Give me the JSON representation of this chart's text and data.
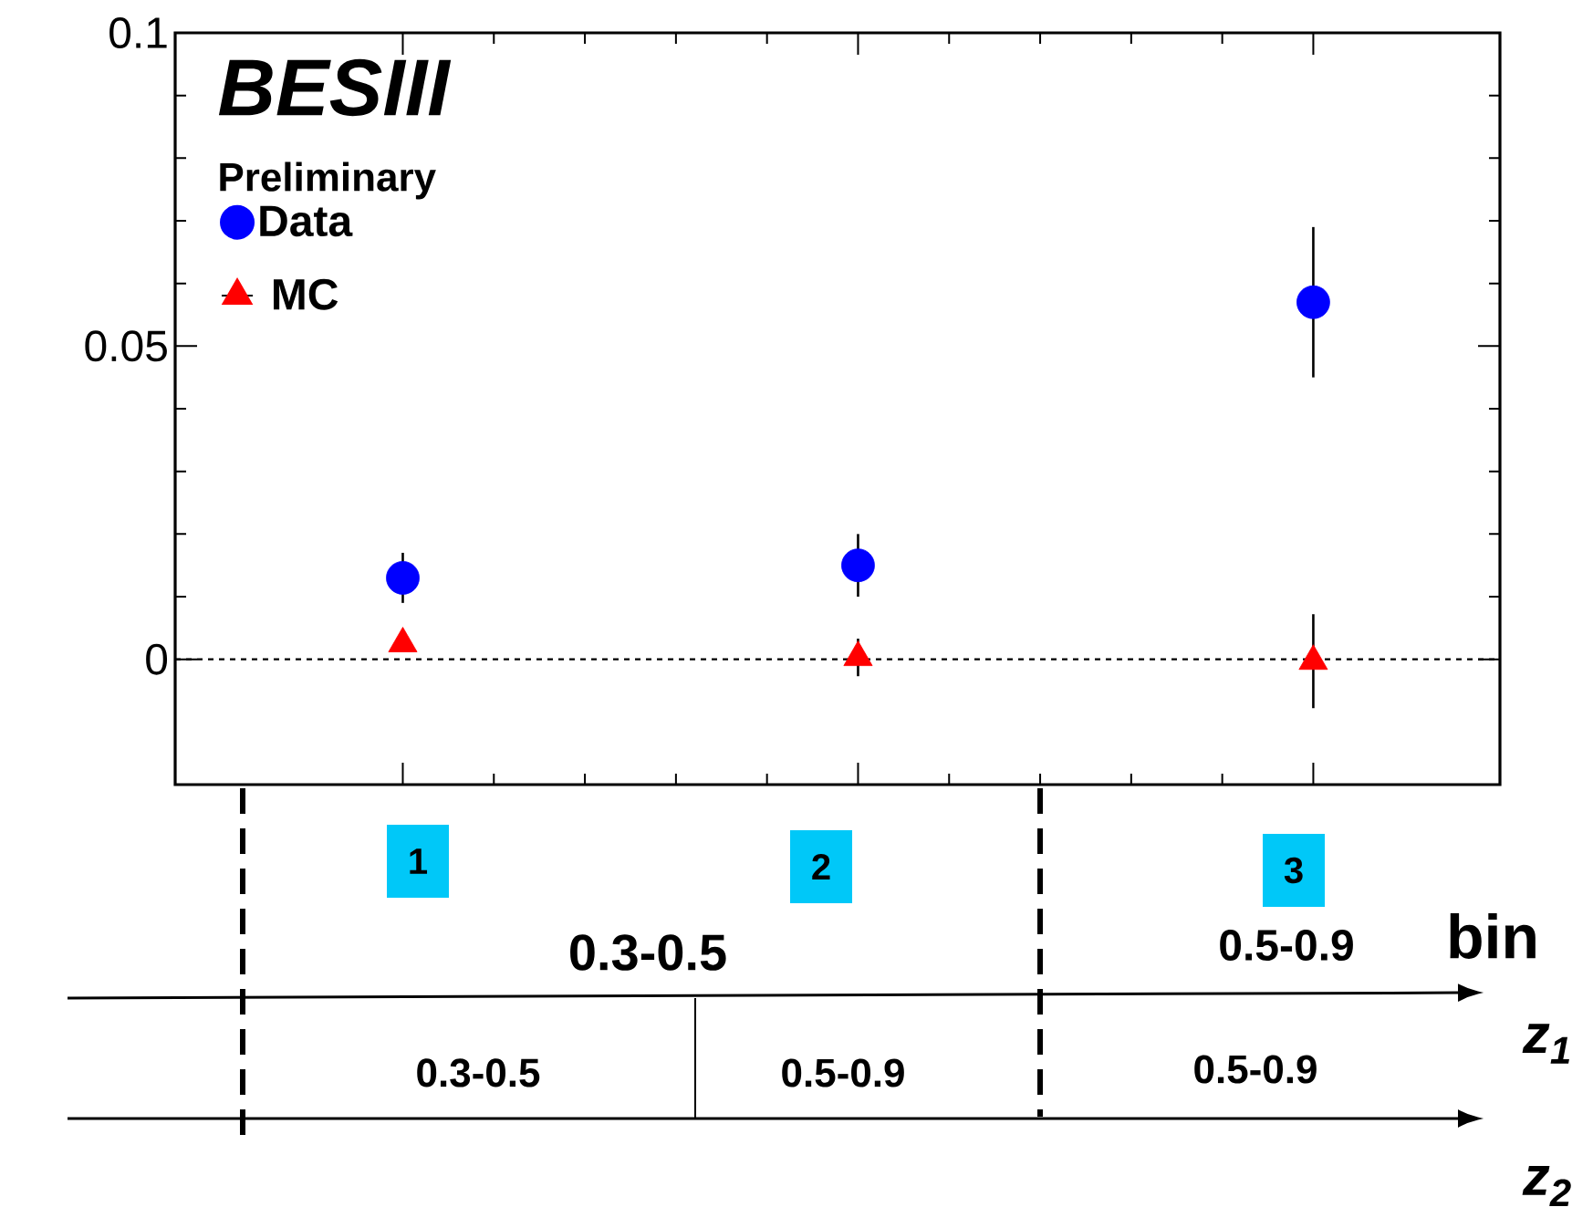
{
  "chart_data": {
    "type": "scatter",
    "categories": [
      "1",
      "2",
      "3"
    ],
    "series": [
      {
        "name": "Data",
        "color": "#0000ff",
        "marker": "circle",
        "values": [
          0.013,
          0.015,
          0.057
        ],
        "errors": [
          0.004,
          0.005,
          0.012
        ]
      },
      {
        "name": "MC",
        "color": "#ff0000",
        "marker": "triangle",
        "values": [
          0.0025,
          0.0003,
          -0.0003
        ],
        "errors": [
          null,
          0.003,
          0.0075
        ]
      }
    ],
    "ylim": [
      -0.02,
      0.1
    ],
    "yticks": [
      0,
      0.05,
      0.1
    ],
    "tick_labels": "y",
    "legend": "top left",
    "grid": false,
    "ref_lines": [
      {
        "axis": "y",
        "value": 0,
        "line_style": "dashed",
        "color": "#000000"
      }
    ],
    "annotations": [
      "BESIII",
      "Preliminary",
      "1",
      "2",
      "3",
      "0.3-0.5",
      "0.5-0.9",
      "bin",
      "0.3-0.5",
      "0.5-0.9",
      "0.5-0.9",
      "z$_{1}$",
      "z$_{2}$"
    ]
  }
}
